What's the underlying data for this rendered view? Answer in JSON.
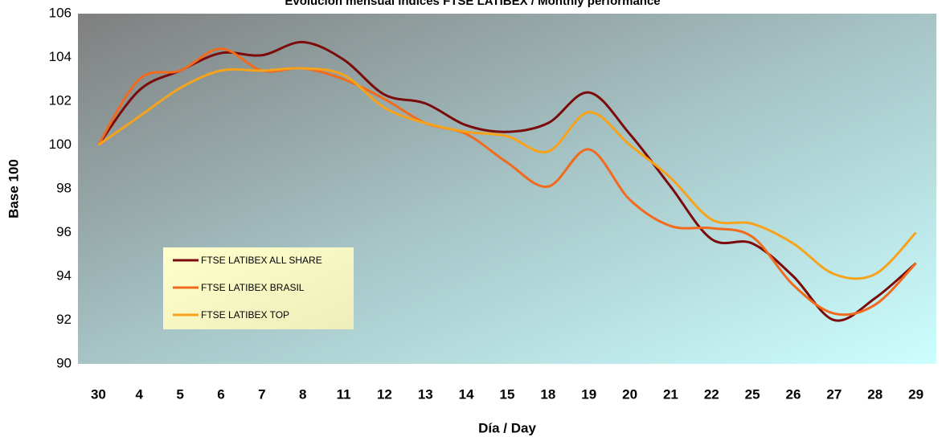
{
  "chart_data": {
    "type": "line",
    "title": "Evolución mensual índices FTSE LATIBEX / Monthly performance",
    "xlabel": "Día / Day",
    "ylabel": "Base 100",
    "categories": [
      "30",
      "4",
      "5",
      "6",
      "7",
      "8",
      "11",
      "12",
      "13",
      "14",
      "15",
      "18",
      "19",
      "20",
      "21",
      "22",
      "25",
      "26",
      "27",
      "28",
      "29"
    ],
    "series": [
      {
        "name": "FTSE LATIBEX ALL SHARE",
        "color": "#7b0a0a",
        "values": [
          100,
          102.5,
          103.4,
          104.2,
          104.1,
          104.7,
          103.9,
          102.3,
          101.9,
          100.9,
          100.6,
          101.0,
          102.4,
          100.5,
          98.1,
          95.7,
          95.5,
          94.0,
          92.0,
          93.0,
          94.6
        ]
      },
      {
        "name": "FTSE LATIBEX BRASIL",
        "color": "#f26a1b",
        "values": [
          100,
          103.0,
          103.4,
          104.4,
          103.4,
          103.5,
          103.0,
          102.1,
          101.0,
          100.5,
          99.2,
          98.1,
          99.8,
          97.5,
          96.3,
          96.2,
          95.8,
          93.6,
          92.3,
          92.7,
          94.6
        ]
      },
      {
        "name": "FTSE LATIBEX TOP",
        "color": "#f7a21b",
        "values": [
          100,
          101.3,
          102.6,
          103.4,
          103.4,
          103.5,
          103.2,
          101.7,
          101.0,
          100.6,
          100.4,
          99.7,
          101.5,
          100.0,
          98.5,
          96.6,
          96.4,
          95.5,
          94.1,
          94.1,
          96.0
        ]
      }
    ],
    "ylim": [
      90,
      106
    ],
    "yticks": [
      90,
      92,
      94,
      96,
      98,
      100,
      102,
      104,
      106
    ],
    "grid": false
  }
}
